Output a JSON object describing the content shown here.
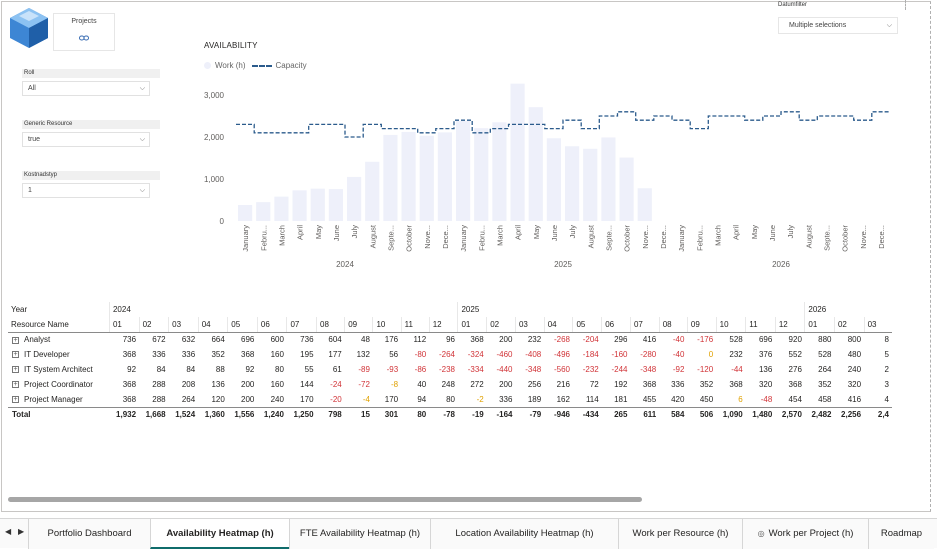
{
  "filters": {
    "projects_card_label": "Projects",
    "projects_card_icon": "link-icon",
    "rol": {
      "label": "Roll",
      "value": "All"
    },
    "generic_resource": {
      "label": "Generic Resource",
      "value": "true"
    },
    "kostnadstyp": {
      "label": "Kostnadstyp",
      "value": "1"
    },
    "datumfilter": {
      "label": "Datumfilter",
      "value": "Multiple selections"
    }
  },
  "chart_data": {
    "type": "bar",
    "title": "AVAILABILITY",
    "legend": [
      "Work (h)",
      "Capacity"
    ],
    "legend_position": "top-left",
    "ylim": [
      0,
      3000
    ],
    "yticks": [
      "3,000",
      "2,000",
      "1,000",
      "0"
    ],
    "categories": [
      "January",
      "Febru...",
      "March",
      "April",
      "May",
      "June",
      "July",
      "August",
      "Septe...",
      "October",
      "Nove...",
      "Dece...",
      "January",
      "Febru...",
      "March",
      "April",
      "May",
      "June",
      "July",
      "August",
      "Septe...",
      "October",
      "Nove...",
      "Dece...",
      "January",
      "Febru...",
      "March",
      "April",
      "May",
      "June",
      "July",
      "August",
      "Septe...",
      "October",
      "Nove...",
      "Dece..."
    ],
    "years": [
      "2024",
      "2025",
      "2026"
    ],
    "series": [
      {
        "name": "Work (h)",
        "type": "bar",
        "color": "#eef0fa",
        "values": [
          380,
          450,
          580,
          730,
          770,
          760,
          1050,
          1410,
          2050,
          2120,
          2030,
          2110,
          2380,
          2210,
          2350,
          3270,
          2710,
          1970,
          1780,
          1720,
          1990,
          1510,
          780,
          0,
          0,
          0,
          0,
          0,
          0,
          0,
          0,
          0,
          0,
          0,
          0,
          0
        ]
      },
      {
        "name": "Capacity",
        "type": "step",
        "color": "#2b5b8c",
        "values": [
          2300,
          2100,
          2100,
          2100,
          2300,
          2300,
          2000,
          2300,
          2200,
          2200,
          2100,
          2200,
          2400,
          2100,
          2200,
          2300,
          2300,
          2200,
          2400,
          2200,
          2500,
          2600,
          2400,
          2500,
          2400,
          2200,
          2500,
          2500,
          2400,
          2500,
          2600,
          2400,
          2500,
          2500,
          2400,
          2600
        ]
      }
    ]
  },
  "table": {
    "year_header": "Year",
    "resource_header": "Resource Name",
    "years": [
      {
        "label": "2024",
        "span": 12
      },
      {
        "label": "2025",
        "span": 12
      },
      {
        "label": "2026",
        "span": 3
      }
    ],
    "months": [
      "01",
      "02",
      "03",
      "04",
      "05",
      "06",
      "07",
      "08",
      "09",
      "10",
      "11",
      "12",
      "01",
      "02",
      "03",
      "04",
      "05",
      "06",
      "07",
      "08",
      "09",
      "10",
      "11",
      "12",
      "01",
      "02",
      "03"
    ],
    "rows": [
      {
        "name": "Analyst",
        "values": [
          "736",
          "672",
          "632",
          "664",
          "696",
          "600",
          "736",
          "604",
          "48",
          "176",
          "112",
          "96",
          "368",
          "200",
          "232",
          "-268",
          "-204",
          "296",
          "416",
          "-40",
          "-176",
          "528",
          "696",
          "920",
          "880",
          "800",
          "8"
        ]
      },
      {
        "name": "IT Developer",
        "values": [
          "368",
          "336",
          "336",
          "352",
          "368",
          "160",
          "195",
          "177",
          "132",
          "56",
          "-80",
          "-264",
          "-324",
          "-460",
          "-408",
          "-496",
          "-184",
          "-160",
          "-280",
          "-40",
          "0",
          "232",
          "376",
          "552",
          "528",
          "480",
          "5"
        ]
      },
      {
        "name": "IT System Architect",
        "values": [
          "92",
          "84",
          "84",
          "88",
          "92",
          "80",
          "55",
          "61",
          "-89",
          "-93",
          "-86",
          "-238",
          "-334",
          "-440",
          "-348",
          "-560",
          "-232",
          "-244",
          "-348",
          "-92",
          "-120",
          "-44",
          "136",
          "276",
          "264",
          "240",
          "2"
        ]
      },
      {
        "name": "Project Coordinator",
        "values": [
          "368",
          "288",
          "208",
          "136",
          "200",
          "160",
          "144",
          "-24",
          "-72",
          "-8",
          "40",
          "248",
          "272",
          "200",
          "256",
          "216",
          "72",
          "192",
          "368",
          "336",
          "352",
          "368",
          "320",
          "368",
          "352",
          "320",
          "3"
        ]
      },
      {
        "name": "Project Manager",
        "values": [
          "368",
          "288",
          "264",
          "120",
          "200",
          "240",
          "170",
          "-20",
          "-4",
          "170",
          "94",
          "80",
          "-2",
          "336",
          "189",
          "162",
          "114",
          "181",
          "455",
          "420",
          "450",
          "6",
          "-48",
          "454",
          "458",
          "416",
          "4"
        ]
      }
    ],
    "total": {
      "name": "Total",
      "values": [
        "1,932",
        "1,668",
        "1,524",
        "1,360",
        "1,556",
        "1,240",
        "1,250",
        "798",
        "15",
        "301",
        "80",
        "-78",
        "-19",
        "-164",
        "-79",
        "-946",
        "-434",
        "265",
        "611",
        "584",
        "506",
        "1,090",
        "1,480",
        "2,570",
        "2,482",
        "2,256",
        "2,4"
      ]
    }
  },
  "tabs": [
    {
      "label": "Portfolio Dashboard",
      "active": false,
      "icon": ""
    },
    {
      "label": "Availability Heatmap (h)",
      "active": true,
      "icon": ""
    },
    {
      "label": "FTE Availability Heatmap (h)",
      "active": false,
      "icon": ""
    },
    {
      "label": "Location Availability Heatmap (h)",
      "active": false,
      "icon": ""
    },
    {
      "label": "Work per Resource (h)",
      "active": false,
      "icon": ""
    },
    {
      "label": "Work per Project (h)",
      "active": false,
      "icon": "hidden-eye-icon"
    },
    {
      "label": "Roadmap",
      "active": false,
      "icon": ""
    }
  ],
  "tab_nav": {
    "prev_icon": "triangle-left-icon",
    "next_icon": "triangle-right-icon"
  }
}
